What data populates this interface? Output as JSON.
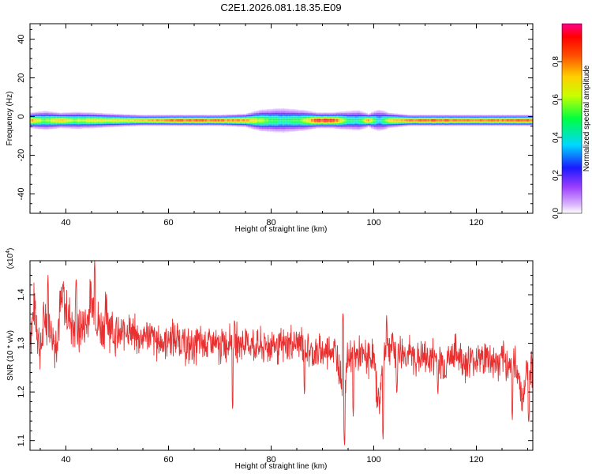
{
  "title": "C2E1.2026.081.18.35.E09",
  "colors": {
    "snr_line": "#e83030",
    "colormap": [
      "#ffffff",
      "#b04cff",
      "#0000ff",
      "#00c8ff",
      "#00ff60",
      "#ffff00",
      "#ff6000",
      "#ff0000",
      "#ff0080"
    ]
  },
  "chart_data": [
    {
      "type": "heatmap",
      "title": "C2E1.2026.081.18.35.E09",
      "xlabel": "Height of straight line (km)",
      "ylabel": "Frequency (Hz)",
      "xlim": [
        33,
        131
      ],
      "ylim": [
        -50,
        48
      ],
      "xticks": [
        40,
        60,
        80,
        100,
        120
      ],
      "yticks": [
        40,
        20,
        0,
        -20,
        -40
      ],
      "band_center_hz": -2,
      "strength_profile": [
        {
          "x": 33,
          "strength": 0.82,
          "width_hz": 3.5
        },
        {
          "x": 36,
          "strength": 0.55,
          "width_hz": 4.5
        },
        {
          "x": 39,
          "strength": 0.75,
          "width_hz": 3.5
        },
        {
          "x": 42,
          "strength": 0.6,
          "width_hz": 4.0
        },
        {
          "x": 46,
          "strength": 0.68,
          "width_hz": 3.5
        },
        {
          "x": 50,
          "strength": 0.7,
          "width_hz": 3.0
        },
        {
          "x": 55,
          "strength": 0.78,
          "width_hz": 2.5
        },
        {
          "x": 60,
          "strength": 0.85,
          "width_hz": 2.5
        },
        {
          "x": 65,
          "strength": 0.88,
          "width_hz": 2.5
        },
        {
          "x": 70,
          "strength": 0.85,
          "width_hz": 2.5
        },
        {
          "x": 75,
          "strength": 0.8,
          "width_hz": 3.0
        },
        {
          "x": 78,
          "strength": 0.6,
          "width_hz": 5.0
        },
        {
          "x": 82,
          "strength": 0.45,
          "width_hz": 6.0
        },
        {
          "x": 86,
          "strength": 0.55,
          "width_hz": 5.0
        },
        {
          "x": 89,
          "strength": 0.92,
          "width_hz": 3.5
        },
        {
          "x": 92,
          "strength": 0.95,
          "width_hz": 3.5
        },
        {
          "x": 95,
          "strength": 0.5,
          "width_hz": 4.5
        },
        {
          "x": 97,
          "strength": 0.42,
          "width_hz": 5.0
        },
        {
          "x": 99,
          "strength": 0.8,
          "width_hz": 3.0
        },
        {
          "x": 101,
          "strength": 0.35,
          "width_hz": 5.5
        },
        {
          "x": 103,
          "strength": 0.7,
          "width_hz": 3.5
        },
        {
          "x": 107,
          "strength": 0.85,
          "width_hz": 2.5
        },
        {
          "x": 112,
          "strength": 0.88,
          "width_hz": 2.5
        },
        {
          "x": 118,
          "strength": 0.85,
          "width_hz": 2.5
        },
        {
          "x": 124,
          "strength": 0.85,
          "width_hz": 2.5
        },
        {
          "x": 128,
          "strength": 0.88,
          "width_hz": 2.5
        },
        {
          "x": 131,
          "strength": 0.88,
          "width_hz": 2.5
        }
      ],
      "colorbar": {
        "label": "Normalized spectral amplitude",
        "range": [
          0,
          1
        ],
        "ticks": [
          "0.0",
          "0.2",
          "0.4",
          "0.6",
          "0.8"
        ],
        "tick_values": [
          0.0,
          0.2,
          0.4,
          0.6,
          0.8
        ]
      }
    },
    {
      "type": "line",
      "xlabel": "Height of straight line (km)",
      "ylabel": "SNR (10 * v/v)",
      "multiplier": "(x10",
      "multiplier_exp": "4",
      "multiplier_close": ")",
      "xlim": [
        33,
        131
      ],
      "ylim": [
        1.08,
        1.47
      ],
      "xticks": [
        40,
        60,
        80,
        100,
        120
      ],
      "yticks": [
        "1.4",
        "1.3",
        "1.2",
        "1.1"
      ],
      "ytick_values": [
        1.4,
        1.3,
        1.2,
        1.1
      ],
      "series": [
        {
          "name": "SNR",
          "x": [
            33,
            34,
            35,
            36,
            37,
            38,
            39,
            40,
            41,
            42,
            43,
            44,
            45,
            46,
            47,
            48,
            50,
            52,
            54,
            56,
            58,
            60,
            62,
            64,
            66,
            68,
            70,
            72,
            74,
            76,
            78,
            80,
            82,
            84,
            86,
            88,
            90,
            92,
            93,
            94,
            95,
            96,
            98,
            100,
            101,
            102,
            103,
            104,
            106,
            108,
            110,
            112,
            114,
            116,
            118,
            120,
            122,
            124,
            126,
            128,
            129,
            130,
            131
          ],
          "values": [
            1.32,
            1.38,
            1.28,
            1.36,
            1.33,
            1.3,
            1.38,
            1.37,
            1.35,
            1.31,
            1.33,
            1.34,
            1.39,
            1.35,
            1.33,
            1.36,
            1.31,
            1.33,
            1.31,
            1.32,
            1.3,
            1.31,
            1.31,
            1.29,
            1.3,
            1.3,
            1.29,
            1.31,
            1.3,
            1.3,
            1.29,
            1.3,
            1.29,
            1.3,
            1.3,
            1.28,
            1.28,
            1.29,
            1.27,
            1.2,
            1.27,
            1.28,
            1.27,
            1.27,
            1.17,
            1.28,
            1.3,
            1.29,
            1.28,
            1.27,
            1.27,
            1.27,
            1.26,
            1.28,
            1.26,
            1.27,
            1.27,
            1.26,
            1.26,
            1.25,
            1.18,
            1.26,
            1.25
          ]
        }
      ],
      "dips": [
        {
          "x": 72.5,
          "y": 1.16
        },
        {
          "x": 86.5,
          "y": 1.19
        },
        {
          "x": 94.3,
          "y": 1.085
        },
        {
          "x": 96.0,
          "y": 1.15
        },
        {
          "x": 101.8,
          "y": 1.1
        },
        {
          "x": 104.5,
          "y": 1.19
        },
        {
          "x": 112.5,
          "y": 1.19
        },
        {
          "x": 127.0,
          "y": 1.14
        },
        {
          "x": 130.2,
          "y": 1.13
        }
      ],
      "peaks": [
        {
          "x": 36.5,
          "y": 1.44
        },
        {
          "x": 39.5,
          "y": 1.43
        },
        {
          "x": 42.0,
          "y": 1.44
        },
        {
          "x": 45.6,
          "y": 1.47
        },
        {
          "x": 94.0,
          "y": 1.37
        },
        {
          "x": 102.5,
          "y": 1.36
        }
      ]
    }
  ]
}
